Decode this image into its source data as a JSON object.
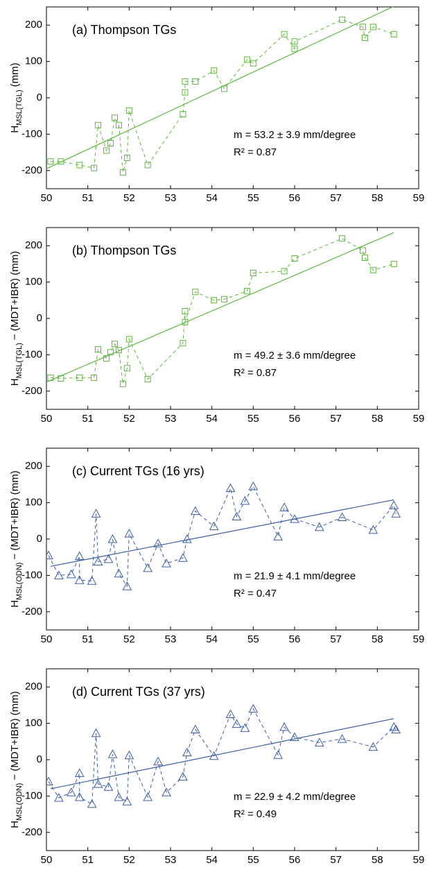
{
  "chart_data": [
    {
      "type": "line",
      "title": "(a) Thompson TGs",
      "ylabel": {
        "main": "H",
        "sub": "MSL(TGL)",
        "rest": "(mm)"
      },
      "annotations": [
        "m = 53.2 ± 3.9 mm/degree",
        "R² = 0.87"
      ],
      "xlim": [
        50,
        59
      ],
      "xticks": [
        50,
        51,
        52,
        53,
        54,
        55,
        56,
        57,
        58,
        59
      ],
      "ylim": [
        -250,
        250
      ],
      "yticks": [
        -200,
        -100,
        0,
        100,
        200
      ],
      "x": [
        50.1,
        50.35,
        50.8,
        51.15,
        51.25,
        51.45,
        51.55,
        51.65,
        51.75,
        51.85,
        51.95,
        52.0,
        52.45,
        53.3,
        53.35,
        53.35,
        53.6,
        54.05,
        54.3,
        54.85,
        55.0,
        55.75,
        56.0,
        56.0,
        57.15,
        57.65,
        57.7,
        57.9,
        58.4
      ],
      "series": [
        {
          "color": "#5cb83a",
          "marker": "square",
          "dashed": true,
          "values": [
            -175,
            -175,
            -185,
            -193,
            -75,
            -145,
            -125,
            -55,
            -75,
            -205,
            -165,
            -35,
            -185,
            -45,
            15,
            45,
            45,
            75,
            25,
            105,
            95,
            175,
            135,
            155,
            215,
            195,
            165,
            195,
            175
          ]
        }
      ],
      "fit": {
        "color": "#5cb83a",
        "x": [
          50,
          58.5
        ],
        "values": [
          -195,
          257
        ]
      }
    },
    {
      "type": "line",
      "title": "(b) Thompson TGs",
      "ylabel": {
        "main": "H",
        "sub": "MSL(TGL)",
        "rest": "− (MDT+IBR) (mm)"
      },
      "annotations": [
        "m = 49.2 ± 3.6 mm/degree",
        "R² = 0.87"
      ],
      "xlim": [
        50,
        59
      ],
      "xticks": [
        50,
        51,
        52,
        53,
        54,
        55,
        56,
        57,
        58,
        59
      ],
      "ylim": [
        -250,
        250
      ],
      "yticks": [
        -200,
        -100,
        0,
        100,
        200
      ],
      "x": [
        50.1,
        50.35,
        50.8,
        51.15,
        51.25,
        51.45,
        51.55,
        51.65,
        51.75,
        51.85,
        51.95,
        52.0,
        52.45,
        53.3,
        53.35,
        53.35,
        53.6,
        54.05,
        54.3,
        54.85,
        55.0,
        55.75,
        56.0,
        56.0,
        57.15,
        57.65,
        57.7,
        57.9,
        58.4
      ],
      "series": [
        {
          "color": "#5cb83a",
          "marker": "square",
          "dashed": true,
          "values": [
            -163,
            -165,
            -163,
            -163,
            -85,
            -110,
            -93,
            -70,
            -87,
            -180,
            -137,
            -57,
            -167,
            -68,
            20,
            -10,
            73,
            50,
            53,
            75,
            125,
            130,
            165,
            165,
            220,
            187,
            167,
            133,
            150
          ]
        }
      ],
      "fit": {
        "color": "#5cb83a",
        "x": [
          50,
          58.4
        ],
        "values": [
          -175,
          236
        ]
      }
    },
    {
      "type": "line",
      "title": "(c) Current TGs (16 yrs)",
      "ylabel": {
        "main": "H",
        "sub": "MSL(ODN)",
        "rest": "− (MDT+IBR) (mm)"
      },
      "annotations": [
        "m = 21.9 ± 4.1 mm/degree",
        "R² = 0.47"
      ],
      "xlim": [
        50,
        59
      ],
      "xticks": [
        50,
        51,
        52,
        53,
        54,
        55,
        56,
        57,
        58,
        59
      ],
      "ylim": [
        -250,
        250
      ],
      "yticks": [
        -200,
        -100,
        0,
        100,
        200
      ],
      "x": [
        50.05,
        50.3,
        50.6,
        50.8,
        50.8,
        51.1,
        51.2,
        51.25,
        51.5,
        51.6,
        51.75,
        51.95,
        52.0,
        52.45,
        52.7,
        52.9,
        53.3,
        53.4,
        53.6,
        54.05,
        54.45,
        54.6,
        54.8,
        55.0,
        55.6,
        55.75,
        56.0,
        56.6,
        57.15,
        57.9,
        58.4,
        58.45
      ],
      "series": [
        {
          "color": "#3a5ca8",
          "marker": "triangle",
          "dashed": true,
          "values": [
            -45,
            -100,
            -97,
            -47,
            -113,
            -115,
            70,
            -62,
            -55,
            0,
            -95,
            -130,
            15,
            -80,
            -12,
            -67,
            -52,
            0,
            77,
            35,
            140,
            62,
            105,
            145,
            7,
            87,
            55,
            33,
            60,
            25,
            93,
            70
          ]
        }
      ],
      "fit": {
        "color": "#3a5ca8",
        "x": [
          50.1,
          58.4
        ],
        "values": [
          -75,
          108
        ]
      }
    },
    {
      "type": "line",
      "title": "(d) Current TGs (37 yrs)",
      "ylabel": {
        "main": "H",
        "sub": "MSL(ODN)",
        "rest": "− (MDT+IBR) (mm)"
      },
      "annotations": [
        "m = 22.9 ± 4.2 mm/degree",
        "R² = 0.49"
      ],
      "xlim": [
        50,
        59
      ],
      "xticks": [
        50,
        51,
        52,
        53,
        54,
        55,
        56,
        57,
        58,
        59
      ],
      "ylim": [
        -250,
        250
      ],
      "yticks": [
        -200,
        -100,
        0,
        100,
        200
      ],
      "x": [
        50.05,
        50.3,
        50.6,
        50.8,
        50.8,
        51.1,
        51.2,
        51.25,
        51.5,
        51.6,
        51.75,
        51.95,
        52.0,
        52.45,
        52.7,
        52.9,
        53.3,
        53.4,
        53.6,
        54.05,
        54.45,
        54.6,
        54.8,
        55.0,
        55.6,
        55.75,
        56.0,
        56.6,
        57.15,
        57.9,
        58.4,
        58.45
      ],
      "series": [
        {
          "color": "#3a5ca8",
          "marker": "triangle",
          "dashed": true,
          "values": [
            -60,
            -105,
            -90,
            -37,
            -103,
            -122,
            73,
            -67,
            -75,
            15,
            -103,
            -115,
            12,
            -103,
            -5,
            -90,
            -47,
            20,
            83,
            10,
            125,
            98,
            87,
            140,
            13,
            90,
            62,
            47,
            57,
            35,
            90,
            83
          ]
        }
      ],
      "fit": {
        "color": "#3a5ca8",
        "x": [
          50.1,
          58.4
        ],
        "values": [
          -80,
          113
        ]
      }
    }
  ]
}
